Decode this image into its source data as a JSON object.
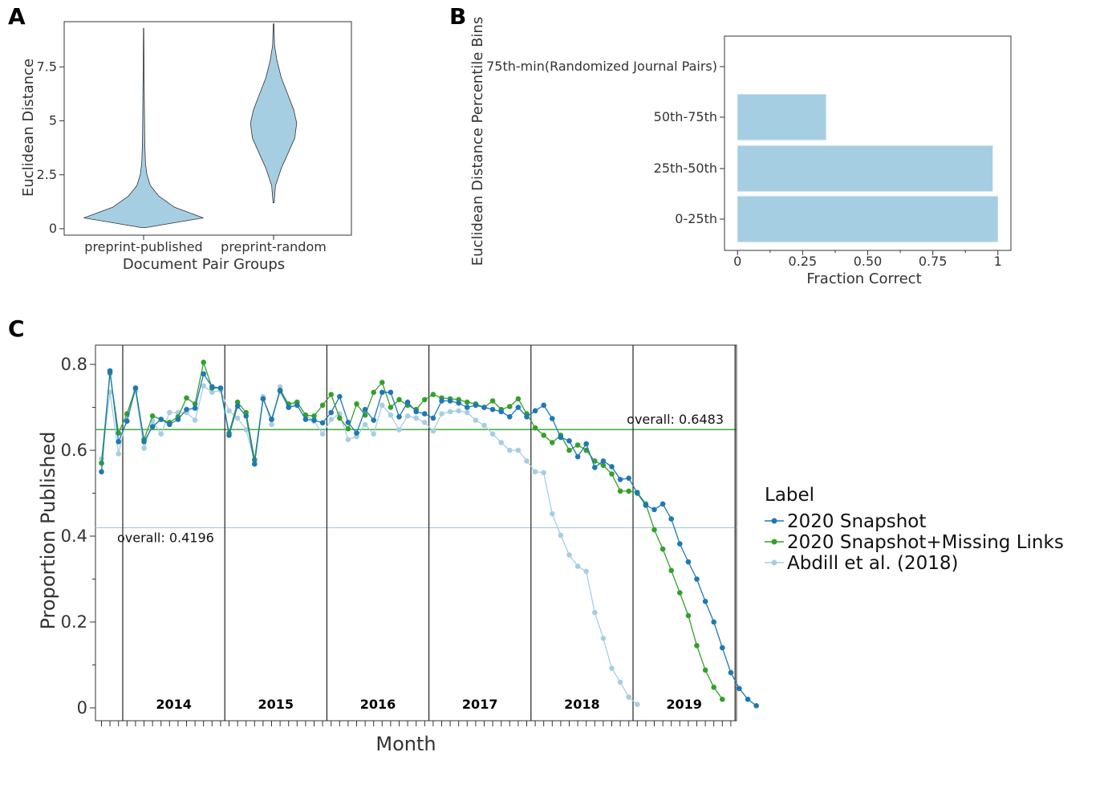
{
  "panel_letters": [
    "A",
    "B",
    "C"
  ],
  "colors": {
    "light_blue": "#a6cee3",
    "dark_blue": "#1f78b4",
    "green": "#33a02c",
    "axis": "#333333"
  },
  "chart_data": [
    {
      "panel": "A",
      "type": "violin",
      "categories": [
        "preprint-published",
        "preprint-random"
      ],
      "xlabel": "Document Pair Groups",
      "ylabel": "Euclidean Distance",
      "yticks": [
        "0",
        "2.5",
        "5",
        "7.5"
      ],
      "ylim": [
        -0.3,
        9.6
      ],
      "violins": [
        {
          "name": "preprint-published",
          "min": 0.05,
          "max": 9.3,
          "median": 0.6,
          "profile": [
            [
              0.05,
              0.02
            ],
            [
              0.3,
              0.35
            ],
            [
              0.5,
              0.62
            ],
            [
              0.7,
              0.5
            ],
            [
              1.0,
              0.32
            ],
            [
              1.5,
              0.16
            ],
            [
              2.0,
              0.07
            ],
            [
              2.5,
              0.035
            ],
            [
              3.0,
              0.02
            ],
            [
              4.0,
              0.012
            ],
            [
              5.5,
              0.008
            ],
            [
              7.5,
              0.004
            ],
            [
              9.3,
              0.002
            ]
          ]
        },
        {
          "name": "preprint-random",
          "min": 1.2,
          "max": 9.5,
          "median": 4.7,
          "profile": [
            [
              1.2,
              0.005
            ],
            [
              2.0,
              0.02
            ],
            [
              2.8,
              0.08
            ],
            [
              3.5,
              0.15
            ],
            [
              4.2,
              0.22
            ],
            [
              4.9,
              0.24
            ],
            [
              5.5,
              0.21
            ],
            [
              6.2,
              0.15
            ],
            [
              7.0,
              0.08
            ],
            [
              7.8,
              0.035
            ],
            [
              8.5,
              0.01
            ],
            [
              9.5,
              0.003
            ]
          ]
        }
      ]
    },
    {
      "panel": "B",
      "type": "bar",
      "orientation": "horizontal",
      "categories": [
        "0-25th",
        "25th-50th",
        "50th-75th",
        "75th-min(Randomized Journal Pairs)"
      ],
      "values": [
        1.0,
        0.98,
        0.34,
        0.0
      ],
      "xlabel": "Fraction Correct",
      "ylabel": "Euclidean Distance Percentile Bins",
      "xticks": [
        "0",
        "0.25",
        "0.50",
        "0.75",
        "1"
      ],
      "xlim": [
        -0.05,
        1.05
      ]
    },
    {
      "panel": "C",
      "type": "line",
      "xlabel": "Month",
      "ylabel": "Proportion Published",
      "yticks": [
        "0",
        "0.2",
        "0.4",
        "0.6",
        "0.8"
      ],
      "ylim": [
        -0.03,
        0.845
      ],
      "months_range": [
        "2013-11",
        "2020-01"
      ],
      "years": [
        "2014",
        "2015",
        "2016",
        "2017",
        "2018",
        "2019"
      ],
      "legend_title": "Label",
      "overall_lines": [
        {
          "label": "overall: 0.6483",
          "value": 0.6483,
          "color": "#33a02c"
        },
        {
          "label": "overall: 0.4196",
          "value": 0.4196,
          "color": "#a6cee3"
        }
      ],
      "series": [
        {
          "name": "2020 Snapshot",
          "color": "#1f78b4",
          "start_month": 0,
          "values": [
            0.55,
            0.785,
            0.62,
            0.668,
            0.745,
            0.62,
            0.655,
            0.672,
            0.66,
            0.672,
            0.695,
            0.698,
            0.778,
            0.748,
            0.745,
            0.635,
            0.703,
            0.68,
            0.568,
            0.72,
            0.672,
            0.738,
            0.7,
            0.705,
            0.672,
            0.67,
            0.664,
            0.688,
            0.725,
            0.665,
            0.64,
            0.695,
            0.67,
            0.735,
            0.735,
            0.678,
            0.712,
            0.69,
            0.685,
            0.675,
            0.715,
            0.715,
            0.71,
            0.7,
            0.705,
            0.7,
            0.695,
            0.69,
            0.678,
            0.7,
            0.678,
            0.692,
            0.705,
            0.674,
            0.63,
            0.622,
            0.585,
            0.615,
            0.56,
            0.575,
            0.562,
            0.532,
            0.535,
            0.5,
            0.472,
            0.462,
            0.475,
            0.44,
            0.382,
            0.34,
            0.3,
            0.248,
            0.2,
            0.14,
            0.082,
            0.045,
            0.02,
            0.005
          ]
        },
        {
          "name": "2020 Snapshot+Missing Links",
          "color": "#33a02c",
          "start_month": 0,
          "values": [
            0.57,
            0.78,
            0.64,
            0.685,
            0.745,
            0.625,
            0.68,
            0.672,
            0.665,
            0.678,
            0.722,
            0.708,
            0.805,
            0.745,
            0.745,
            0.64,
            0.712,
            0.688,
            0.578,
            0.72,
            0.672,
            0.74,
            0.708,
            0.712,
            0.682,
            0.68,
            0.705,
            0.73,
            0.675,
            0.65,
            0.708,
            0.682,
            0.735,
            0.758,
            0.7,
            0.718,
            0.705,
            0.695,
            0.718,
            0.73,
            0.722,
            0.72,
            0.718,
            0.712,
            0.708,
            0.7,
            0.715,
            0.695,
            0.702,
            0.72,
            0.685,
            0.652,
            0.635,
            0.618,
            0.635,
            0.6,
            0.612,
            0.6,
            0.575,
            0.565,
            0.545,
            0.505,
            0.505,
            0.502,
            0.475,
            0.415,
            0.37,
            0.32,
            0.268,
            0.215,
            0.145,
            0.088,
            0.048,
            0.02
          ]
        },
        {
          "name": "Abdill et al. (2018)",
          "color": "#a6cee3",
          "start_month": 0,
          "values": [
            0.58,
            0.735,
            0.592,
            0.682,
            0.738,
            0.605,
            0.668,
            0.638,
            0.688,
            0.688,
            0.688,
            0.67,
            0.75,
            0.735,
            0.74,
            0.692,
            0.675,
            0.648,
            0.575,
            0.725,
            0.66,
            0.748,
            0.7,
            0.712,
            0.682,
            0.668,
            0.638,
            0.672,
            0.685,
            0.625,
            0.632,
            0.66,
            0.638,
            0.705,
            0.682,
            0.648,
            0.68,
            0.675,
            0.665,
            0.645,
            0.685,
            0.69,
            0.692,
            0.688,
            0.67,
            0.658,
            0.638,
            0.618,
            0.6,
            0.6,
            0.575,
            0.55,
            0.548,
            0.452,
            0.402,
            0.356,
            0.33,
            0.318,
            0.222,
            0.162,
            0.092,
            0.06,
            0.025,
            0.008
          ]
        }
      ]
    }
  ]
}
